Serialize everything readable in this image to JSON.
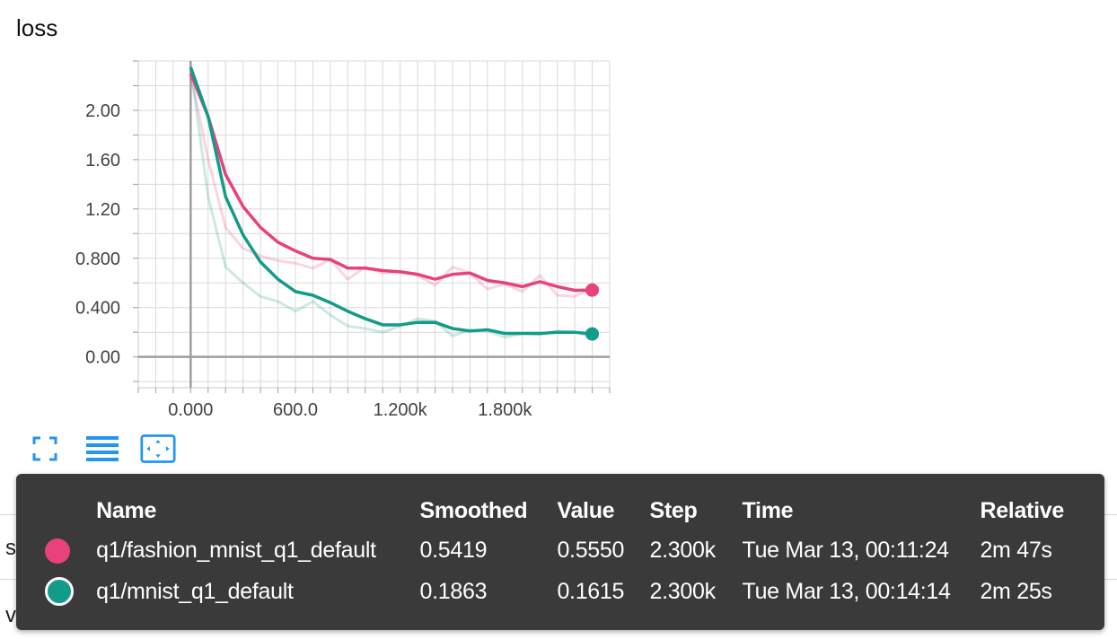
{
  "chart_data": {
    "type": "line",
    "title": "loss",
    "xlim": [
      -300,
      2400
    ],
    "ylim": [
      -0.25,
      2.4
    ],
    "x_ticks": [
      0,
      600,
      1200,
      1800
    ],
    "x_tick_labels": [
      "0.000",
      "600.0",
      "1.200k",
      "1.800k"
    ],
    "y_ticks": [
      0,
      0.4,
      0.8,
      1.2,
      1.6,
      2.0
    ],
    "y_tick_labels": [
      "0.00",
      "0.400",
      "0.800",
      "1.20",
      "1.60",
      "2.00"
    ],
    "grid": true,
    "series": [
      {
        "name": "q1/fashion_mnist_q1_default",
        "color": "#e8417b",
        "raw_x": [
          0,
          100,
          200,
          300,
          400,
          500,
          600,
          700,
          800,
          900,
          1000,
          1100,
          1200,
          1300,
          1400,
          1500,
          1600,
          1700,
          1800,
          1900,
          2000,
          2100,
          2200,
          2300
        ],
        "raw_y": [
          2.3,
          1.6,
          1.05,
          0.88,
          0.82,
          0.78,
          0.76,
          0.72,
          0.79,
          0.63,
          0.73,
          0.68,
          0.69,
          0.66,
          0.58,
          0.73,
          0.68,
          0.55,
          0.59,
          0.53,
          0.66,
          0.5,
          0.49,
          0.555
        ],
        "smoothed_x": [
          0,
          100,
          200,
          300,
          400,
          500,
          600,
          700,
          800,
          900,
          1000,
          1100,
          1200,
          1300,
          1400,
          1500,
          1600,
          1700,
          1800,
          1900,
          2000,
          2100,
          2200,
          2300
        ],
        "smoothed_y": [
          2.3,
          1.95,
          1.48,
          1.22,
          1.05,
          0.93,
          0.86,
          0.8,
          0.79,
          0.72,
          0.72,
          0.7,
          0.69,
          0.67,
          0.63,
          0.67,
          0.68,
          0.62,
          0.6,
          0.57,
          0.61,
          0.57,
          0.54,
          0.5419
        ],
        "smoothed": "0.5419",
        "value": "0.5550",
        "step": "2.300k",
        "time": "Tue Mar 13, 00:11:24",
        "relative": "2m 47s"
      },
      {
        "name": "q1/mnist_q1_default",
        "color": "#139b8a",
        "raw_x": [
          0,
          100,
          200,
          300,
          400,
          500,
          600,
          700,
          800,
          900,
          1000,
          1100,
          1200,
          1300,
          1400,
          1500,
          1600,
          1700,
          1800,
          1900,
          2000,
          2100,
          2200,
          2300
        ],
        "raw_y": [
          2.35,
          1.3,
          0.73,
          0.6,
          0.49,
          0.45,
          0.37,
          0.45,
          0.34,
          0.25,
          0.23,
          0.2,
          0.25,
          0.31,
          0.29,
          0.17,
          0.22,
          0.21,
          0.16,
          0.19,
          0.18,
          0.21,
          0.2,
          0.1615
        ],
        "smoothed_x": [
          0,
          100,
          200,
          300,
          400,
          500,
          600,
          700,
          800,
          900,
          1000,
          1100,
          1200,
          1300,
          1400,
          1500,
          1600,
          1700,
          1800,
          1900,
          2000,
          2100,
          2200,
          2300
        ],
        "smoothed_y": [
          2.35,
          1.95,
          1.3,
          0.99,
          0.77,
          0.63,
          0.53,
          0.5,
          0.44,
          0.37,
          0.31,
          0.26,
          0.26,
          0.28,
          0.28,
          0.23,
          0.21,
          0.22,
          0.19,
          0.19,
          0.19,
          0.2,
          0.2,
          0.1863
        ],
        "smoothed": "0.1863",
        "value": "0.1615",
        "step": "2.300k",
        "time": "Tue Mar 13, 00:14:14",
        "relative": "2m 25s"
      }
    ]
  },
  "toolbar": {
    "icons": [
      "expand-icon",
      "list-icon",
      "fit-domain-icon"
    ],
    "accent_color": "#2196f3"
  },
  "tooltip": {
    "headers": {
      "name": "Name",
      "smoothed": "Smoothed",
      "value": "Value",
      "step": "Step",
      "time": "Time",
      "relative": "Relative"
    }
  },
  "underlay": {
    "label_1": "size",
    "label_2": "val_acc"
  }
}
